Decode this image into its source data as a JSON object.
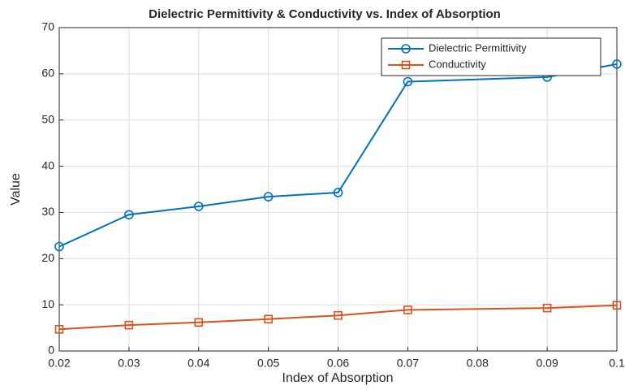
{
  "chart_data": {
    "type": "line",
    "title": "Dielectric Permittivity & Conductivity vs. Index of Absorption",
    "x_label": "Index of Absorption",
    "y_label": "Value",
    "x": [
      0.02,
      0.03,
      0.04,
      0.05,
      0.06,
      0.07,
      0.09,
      0.1
    ],
    "series": [
      {
        "name": "Dielectric Permittivity",
        "color": "#0072bd",
        "marker": "circle",
        "values": [
          22.6,
          29.5,
          31.3,
          33.4,
          34.3,
          58.3,
          59.3,
          62.1
        ]
      },
      {
        "name": "Conductivity",
        "color": "#d95319",
        "marker": "square",
        "values": [
          4.7,
          5.6,
          6.2,
          6.9,
          7.7,
          8.9,
          9.3,
          9.9
        ]
      }
    ],
    "xlim": [
      0.02,
      0.1
    ],
    "xticks": [
      0.02,
      0.03,
      0.04,
      0.05,
      0.06,
      0.07,
      0.08,
      0.09,
      0.1
    ],
    "ylim": [
      0,
      70
    ],
    "yticks": [
      0,
      10,
      20,
      30,
      40,
      50,
      60,
      70
    ],
    "grid": true,
    "legend": "top-right"
  }
}
